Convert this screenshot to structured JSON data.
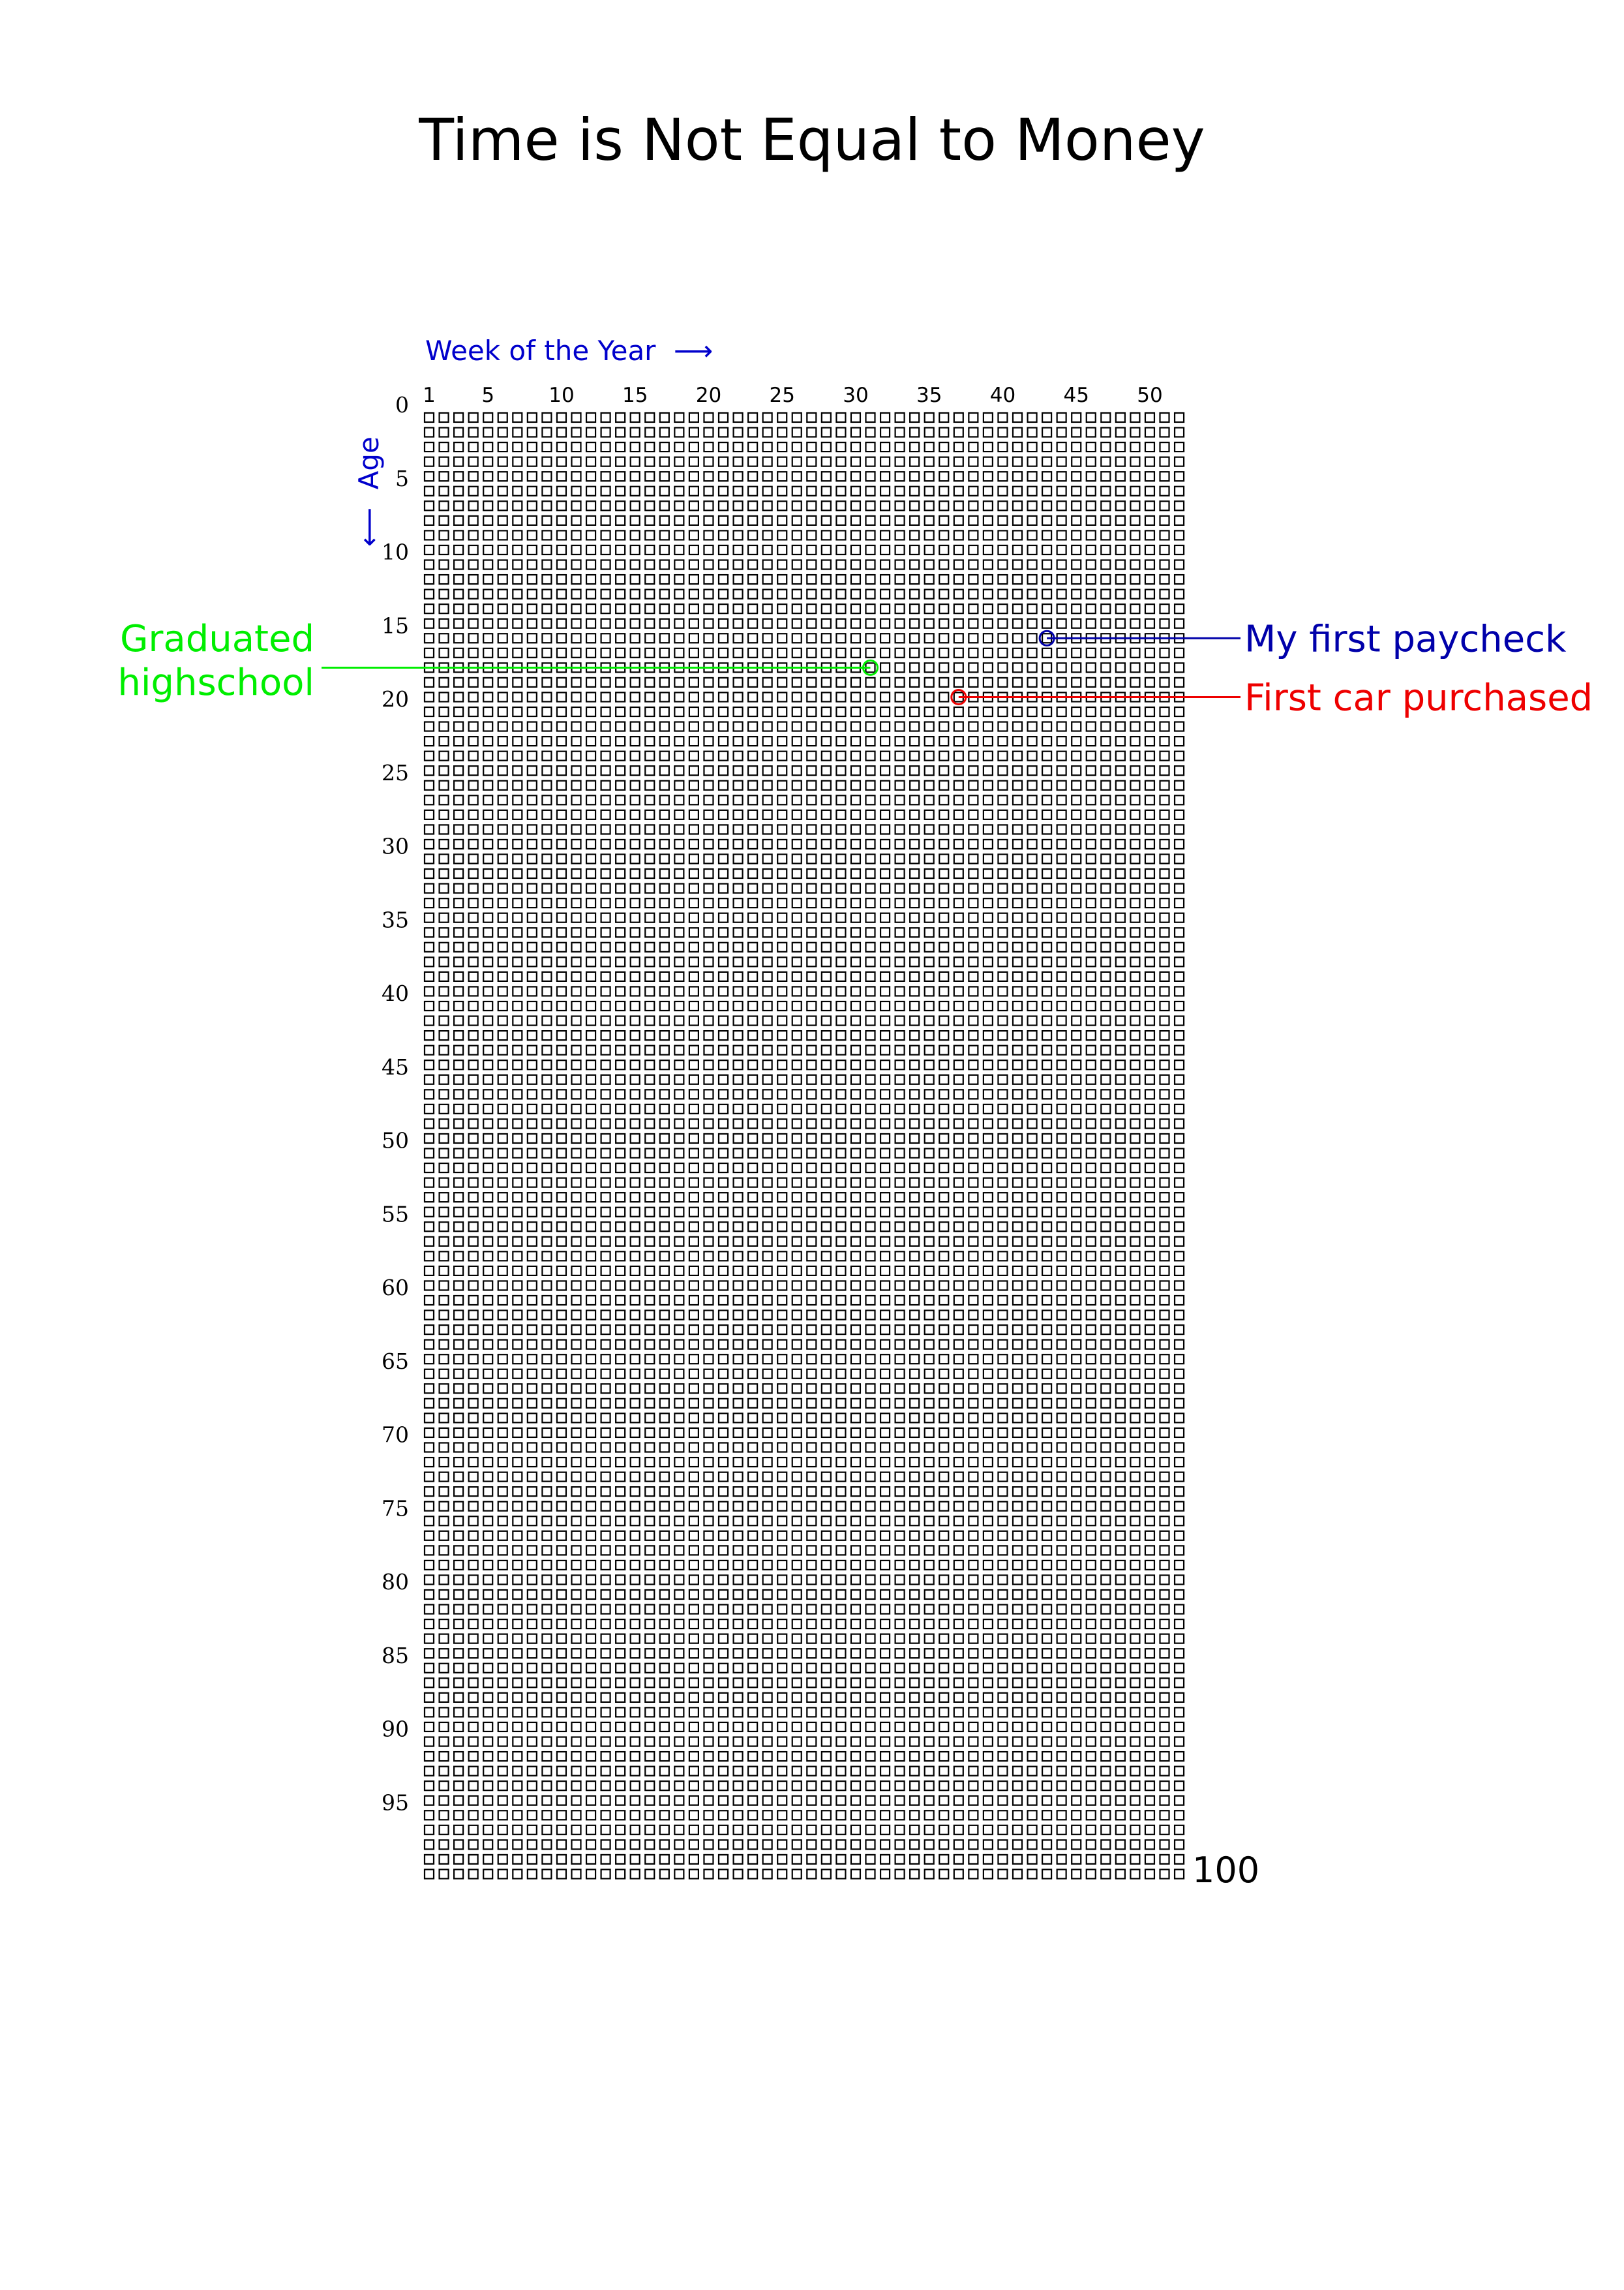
{
  "chart_data": {
    "type": "table",
    "title": "Time is Not Equal to Money",
    "xlabel": "Week of the Year",
    "ylabel": "Age",
    "x_arrow": "⟶",
    "y_arrow": "⟵",
    "weeks_per_year": 52,
    "years": 100,
    "x_ticks": [
      1,
      5,
      10,
      15,
      20,
      25,
      30,
      35,
      40,
      45,
      50
    ],
    "y_ticks": [
      0,
      5,
      10,
      15,
      20,
      25,
      30,
      35,
      40,
      45,
      50,
      55,
      60,
      65,
      70,
      75,
      80,
      85,
      90,
      95
    ],
    "end_label": "100",
    "axis_color": "#0000cc",
    "cell_color": "#000000",
    "events": [
      {
        "lines": [
          "My first paycheck"
        ],
        "age": 15,
        "week": 43,
        "side": "right",
        "color": "#0000aa"
      },
      {
        "lines": [
          "First car purchased"
        ],
        "age": 19,
        "week": 37,
        "side": "right",
        "color": "#ee0000"
      },
      {
        "lines": [
          "Graduated",
          "highschool"
        ],
        "age": 17,
        "week": 31,
        "side": "left",
        "color": "#00ee00"
      }
    ]
  }
}
